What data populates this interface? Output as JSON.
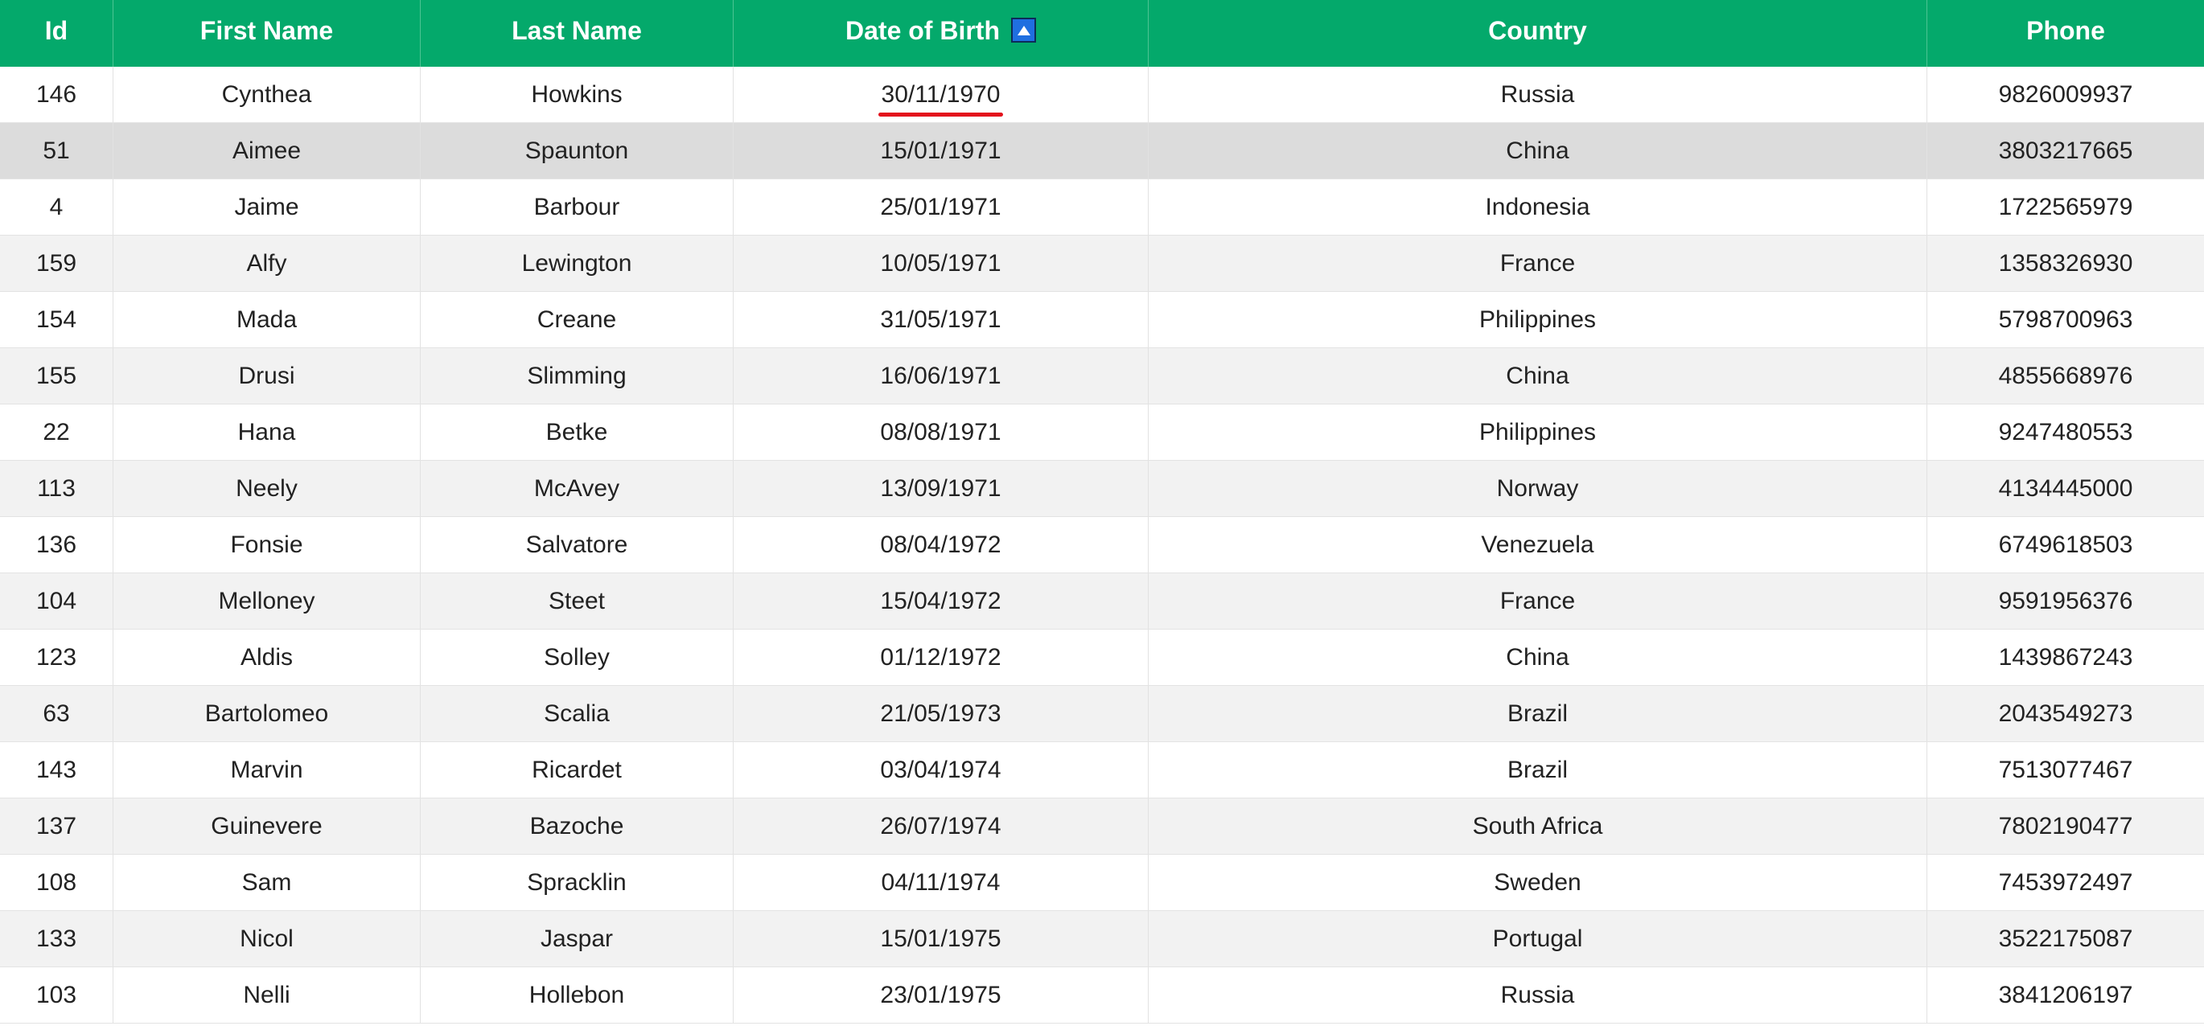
{
  "table": {
    "columns": [
      {
        "key": "id",
        "label": "Id"
      },
      {
        "key": "first_name",
        "label": "First Name"
      },
      {
        "key": "last_name",
        "label": "Last Name"
      },
      {
        "key": "dob",
        "label": "Date of Birth"
      },
      {
        "key": "country",
        "label": "Country"
      },
      {
        "key": "phone",
        "label": "Phone"
      }
    ],
    "sort": {
      "column": "Date of Birth",
      "direction": "ascending",
      "icon": "sort-ascending-icon"
    },
    "header_color": "#04a96b",
    "highlight_color": "#e3121c",
    "rows": [
      {
        "id": "146",
        "first_name": "Cynthea",
        "last_name": "Howkins",
        "dob": "30/11/1970",
        "country": "Russia",
        "phone": "9826009937"
      },
      {
        "id": "51",
        "first_name": "Aimee",
        "last_name": "Spaunton",
        "dob": "15/01/1971",
        "country": "China",
        "phone": "3803217665"
      },
      {
        "id": "4",
        "first_name": "Jaime",
        "last_name": "Barbour",
        "dob": "25/01/1971",
        "country": "Indonesia",
        "phone": "1722565979"
      },
      {
        "id": "159",
        "first_name": "Alfy",
        "last_name": "Lewington",
        "dob": "10/05/1971",
        "country": "France",
        "phone": "1358326930"
      },
      {
        "id": "154",
        "first_name": "Mada",
        "last_name": "Creane",
        "dob": "31/05/1971",
        "country": "Philippines",
        "phone": "5798700963"
      },
      {
        "id": "155",
        "first_name": "Drusi",
        "last_name": "Slimming",
        "dob": "16/06/1971",
        "country": "China",
        "phone": "4855668976"
      },
      {
        "id": "22",
        "first_name": "Hana",
        "last_name": "Betke",
        "dob": "08/08/1971",
        "country": "Philippines",
        "phone": "9247480553"
      },
      {
        "id": "113",
        "first_name": "Neely",
        "last_name": "McAvey",
        "dob": "13/09/1971",
        "country": "Norway",
        "phone": "4134445000"
      },
      {
        "id": "136",
        "first_name": "Fonsie",
        "last_name": "Salvatore",
        "dob": "08/04/1972",
        "country": "Venezuela",
        "phone": "6749618503"
      },
      {
        "id": "104",
        "first_name": "Melloney",
        "last_name": "Steet",
        "dob": "15/04/1972",
        "country": "France",
        "phone": "9591956376"
      },
      {
        "id": "123",
        "first_name": "Aldis",
        "last_name": "Solley",
        "dob": "01/12/1972",
        "country": "China",
        "phone": "1439867243"
      },
      {
        "id": "63",
        "first_name": "Bartolomeo",
        "last_name": "Scalia",
        "dob": "21/05/1973",
        "country": "Brazil",
        "phone": "2043549273"
      },
      {
        "id": "143",
        "first_name": "Marvin",
        "last_name": "Ricardet",
        "dob": "03/04/1974",
        "country": "Brazil",
        "phone": "7513077467"
      },
      {
        "id": "137",
        "first_name": "Guinevere",
        "last_name": "Bazoche",
        "dob": "26/07/1974",
        "country": "South Africa",
        "phone": "7802190477"
      },
      {
        "id": "108",
        "first_name": "Sam",
        "last_name": "Spracklin",
        "dob": "04/11/1974",
        "country": "Sweden",
        "phone": "7453972497"
      },
      {
        "id": "133",
        "first_name": "Nicol",
        "last_name": "Jaspar",
        "dob": "15/01/1975",
        "country": "Portugal",
        "phone": "3522175087"
      },
      {
        "id": "103",
        "first_name": "Nelli",
        "last_name": "Hollebon",
        "dob": "23/01/1975",
        "country": "Russia",
        "phone": "3841206197"
      }
    ]
  }
}
